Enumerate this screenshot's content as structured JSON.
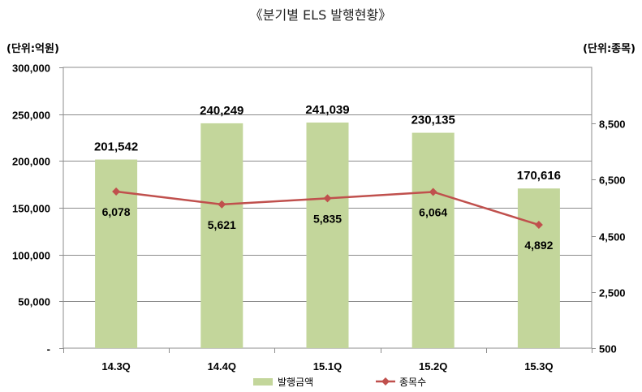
{
  "chart_data": {
    "type": "bar",
    "title": "《분기별 ELS 발행현황》",
    "categories": [
      "14.3Q",
      "14.4Q",
      "15.1Q",
      "15.2Q",
      "15.3Q"
    ],
    "series": [
      {
        "name": "발행금액",
        "type": "bar",
        "axis": "left",
        "color": "#c3d69b",
        "values": [
          201542,
          240249,
          241039,
          230135,
          170616
        ],
        "labels": [
          "201,542",
          "240,249",
          "241,039",
          "230,135",
          "170,616"
        ]
      },
      {
        "name": "종목수",
        "type": "line",
        "axis": "right",
        "color": "#c0504d",
        "values": [
          6078,
          5621,
          5835,
          6064,
          4892
        ],
        "labels": [
          "6,078",
          "5,621",
          "5,835",
          "6,064",
          "4,892"
        ]
      }
    ],
    "y_left": {
      "unit_label": "(단위:억원)",
      "ylim": [
        0,
        300000
      ],
      "ticks": [
        0,
        50000,
        100000,
        150000,
        200000,
        250000,
        300000
      ],
      "tick_labels": [
        "-",
        "50,000",
        "100,000",
        "150,000",
        "200,000",
        "250,000",
        "300,000"
      ]
    },
    "y_right": {
      "unit_label": "(단위:종목)",
      "ylim": [
        500,
        10500
      ],
      "ticks": [
        500,
        2500,
        4500,
        6500,
        8500
      ],
      "tick_labels": [
        "500",
        "2,500",
        "4,500",
        "6,500",
        "8,500"
      ]
    },
    "grid": true,
    "legend_position": "bottom"
  }
}
